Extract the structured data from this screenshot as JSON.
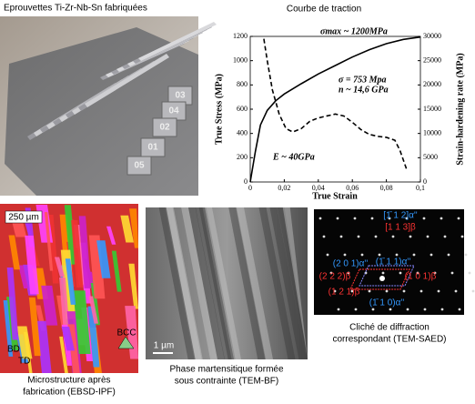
{
  "photo": {
    "caption": "Eprouvettes Ti-Zr-Nb-Sn  fabriquées",
    "labels": [
      "03",
      "04",
      "02",
      "01",
      "05"
    ]
  },
  "chart_data": {
    "type": "line",
    "title": "Courbe de traction",
    "xlabel": "True Strain",
    "ylabel": "True Stress (MPa)",
    "y2label": "Strain-hardening rate (MPa)",
    "xlim": [
      0,
      0.1
    ],
    "xticks": [
      0,
      {
        "value": 0.02,
        "label": "0,02"
      },
      {
        "value": 0.04,
        "label": "0,04"
      },
      {
        "value": 0.06,
        "label": "0,06"
      },
      {
        "value": 0.08,
        "label": "0,08"
      },
      {
        "value": 0.1,
        "label": "0,1"
      }
    ],
    "ylim": [
      0,
      1200
    ],
    "yticks": [
      0,
      200,
      400,
      600,
      800,
      1000,
      1200
    ],
    "y2lim": [
      0,
      30000
    ],
    "y2ticks": [
      0,
      5000,
      10000,
      15000,
      20000,
      25000,
      30000
    ],
    "series": [
      {
        "color": "#000000",
        "dash": false,
        "x": [
          0,
          0.003,
          0.006,
          0.01,
          0.015,
          0.02,
          0.03,
          0.04,
          0.05,
          0.06,
          0.07,
          0.08,
          0.09,
          0.1
        ],
        "values": [
          0,
          250,
          470,
          590,
          670,
          725,
          810,
          890,
          960,
          1030,
          1090,
          1140,
          1175,
          1195
        ]
      },
      {
        "color": "#000000",
        "dash": true,
        "axis": "y2",
        "x": [
          0.008,
          0.01,
          0.013,
          0.017,
          0.021,
          0.025,
          0.03,
          0.035,
          0.04,
          0.045,
          0.05,
          0.055,
          0.06,
          0.065,
          0.07,
          0.075,
          0.08,
          0.085,
          0.088,
          0.09,
          0.092
        ],
        "values": [
          29500,
          25000,
          19000,
          14000,
          11000,
          10300,
          11000,
          12500,
          13200,
          13600,
          14000,
          13600,
          12300,
          10800,
          9800,
          9400,
          9200,
          8600,
          6500,
          4500,
          2500
        ]
      }
    ],
    "annotations": [
      "σmax ~ 1200MPa",
      "σ = 753 Mpa",
      "n ~ 14,6 GPa",
      "E ~ 40GPa"
    ]
  },
  "ebsd": {
    "scale": "250 µm",
    "axes": [
      "BD",
      "TD"
    ],
    "legend": "BCC",
    "caption": [
      "Microstructure après",
      "fabrication (EBSD-IPF)"
    ]
  },
  "tem": {
    "scale": "1 µm",
    "caption": [
      "Phase martensitique formée",
      "sous contrainte (TEM-BF)"
    ]
  },
  "saed": {
    "labels": [
      "[1̄ 1 2]α''",
      "[1 1 3]β",
      "(2 0 1)α''",
      "(1̄ 1 1)α''",
      "(2 2 2)β",
      "(1 0 1)β",
      "(1 2 1)β",
      "(1̄ 1 0)α''"
    ],
    "caption": [
      "Cliché de diffraction",
      "correspondant (TEM-SAED)"
    ]
  }
}
